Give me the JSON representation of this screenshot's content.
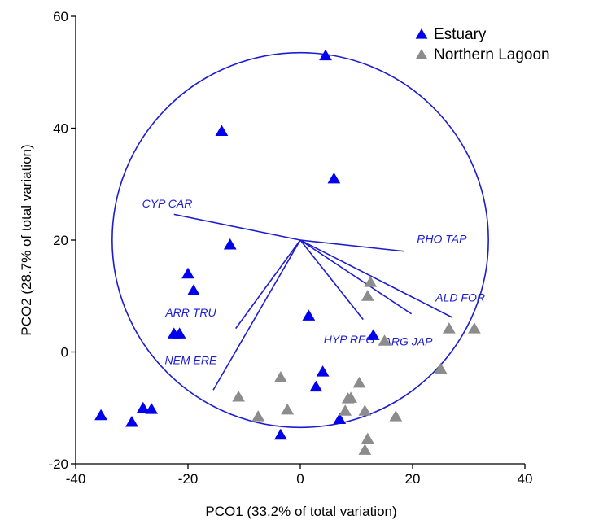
{
  "chart_data": {
    "type": "scatter",
    "xlabel": "PCO1 (33.2% of total variation)",
    "ylabel": "PCO2 (28.7% of total variation)",
    "xlim": [
      -40,
      40
    ],
    "ylim": [
      -20,
      60
    ],
    "xticks": [
      -40,
      -20,
      0,
      20,
      40
    ],
    "yticks": [
      -20,
      0,
      20,
      40,
      60
    ],
    "grid": false,
    "legend_position": "top-right",
    "colors": {
      "estuary": "#0000ee",
      "northern_lagoon": "#8c8c8c",
      "vectors": "#1c1cd0"
    },
    "series": [
      {
        "name": "Estuary",
        "marker": "triangle",
        "points": [
          {
            "x": 4.5,
            "y": 53
          },
          {
            "x": -14,
            "y": 39.5
          },
          {
            "x": 6,
            "y": 31
          },
          {
            "x": -12.5,
            "y": 19.2
          },
          {
            "x": -20,
            "y": 14
          },
          {
            "x": -19,
            "y": 11
          },
          {
            "x": -22.5,
            "y": 3.3
          },
          {
            "x": -21.5,
            "y": 3.3
          },
          {
            "x": 1.5,
            "y": 6.5
          },
          {
            "x": 13,
            "y": 3
          },
          {
            "x": 4,
            "y": -3.5
          },
          {
            "x": 2.8,
            "y": -6.2
          },
          {
            "x": 7,
            "y": -12
          },
          {
            "x": -3.5,
            "y": -14.8
          },
          {
            "x": -35.5,
            "y": -11.3
          },
          {
            "x": -30,
            "y": -12.5
          },
          {
            "x": -28,
            "y": -10
          },
          {
            "x": -26.5,
            "y": -10.2
          }
        ]
      },
      {
        "name": "Northern Lagoon",
        "marker": "triangle",
        "points": [
          {
            "x": 12.5,
            "y": 12.5
          },
          {
            "x": 12,
            "y": 10
          },
          {
            "x": 15,
            "y": 2
          },
          {
            "x": 26.5,
            "y": 4.2
          },
          {
            "x": 31,
            "y": 4.2
          },
          {
            "x": 25,
            "y": -3
          },
          {
            "x": 10.5,
            "y": -5.5
          },
          {
            "x": 9,
            "y": -8.2
          },
          {
            "x": 8.5,
            "y": -8.3
          },
          {
            "x": 8,
            "y": -10.5
          },
          {
            "x": 11.5,
            "y": -10.5
          },
          {
            "x": 12,
            "y": -15.5
          },
          {
            "x": 11.5,
            "y": -17.5
          },
          {
            "x": 17,
            "y": -11.5
          },
          {
            "x": -3.5,
            "y": -4.5
          },
          {
            "x": -2.3,
            "y": -10.3
          },
          {
            "x": -11,
            "y": -8
          },
          {
            "x": -7.5,
            "y": -11.5
          }
        ]
      }
    ],
    "circle": {
      "cx": 0,
      "cy": 20,
      "r": 33.5
    },
    "vectors": [
      {
        "label": "CYP CAR",
        "x2": -22.5,
        "y2": 24.6,
        "lx": -23.7,
        "ly": 25.8
      },
      {
        "label": "RHO TAP",
        "x2": 18.5,
        "y2": 18.0,
        "lx": 25.2,
        "ly": 19.5
      },
      {
        "label": "ALD FOR",
        "x2": 27.0,
        "y2": 6.2,
        "lx": 28.5,
        "ly": 9.0
      },
      {
        "label": "ARG JAP",
        "x2": 19.8,
        "y2": 6.8,
        "lx": 19.2,
        "ly": 1.2
      },
      {
        "label": "HYP REG",
        "x2": 11.2,
        "y2": 5.8,
        "lx": 8.7,
        "ly": 1.5
      },
      {
        "label": "ARR TRU",
        "x2": -11.5,
        "y2": 4.2,
        "lx": -19.5,
        "ly": 6.3
      },
      {
        "label": "NEM ERE",
        "x2": -15.5,
        "y2": -6.8,
        "lx": -19.5,
        "ly": -2.2
      }
    ]
  }
}
